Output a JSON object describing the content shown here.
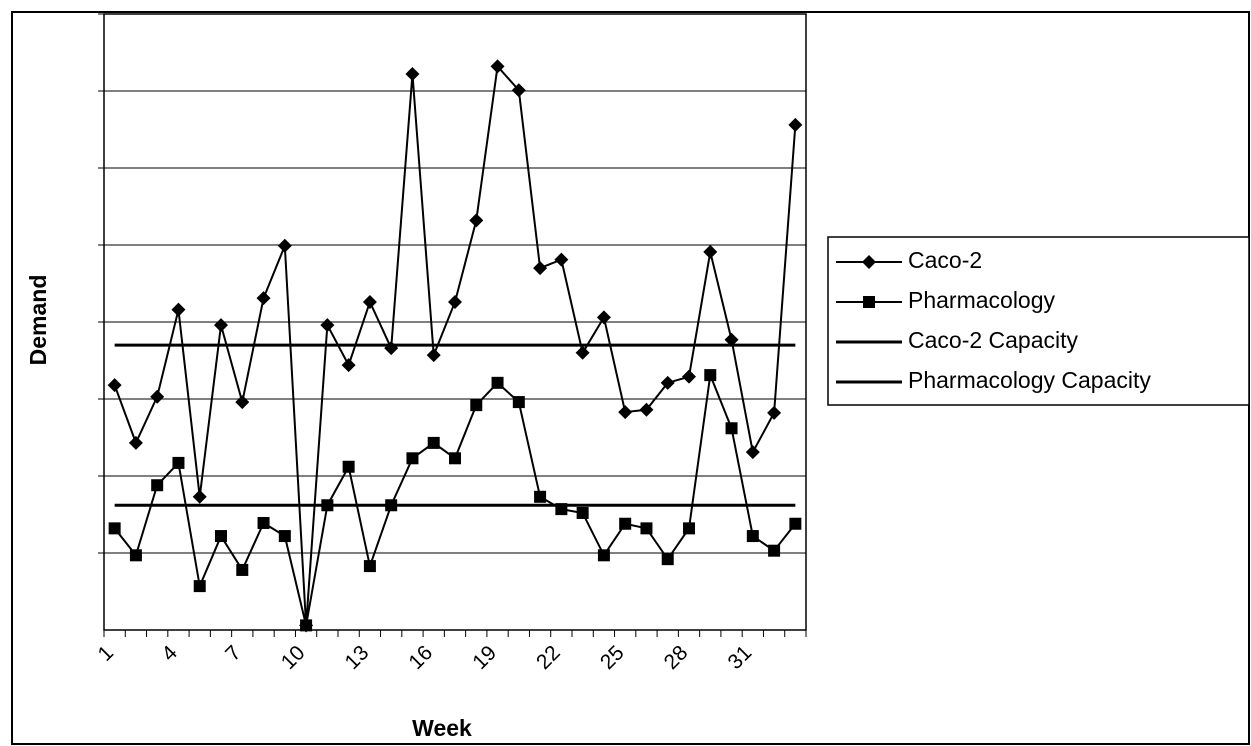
{
  "chart_data": {
    "type": "line",
    "x_label": "Week",
    "y_label": "Demand",
    "categories": [
      "1",
      null,
      null,
      "4",
      null,
      null,
      "7",
      null,
      null,
      "10",
      null,
      null,
      "13",
      null,
      null,
      "16",
      null,
      null,
      "19",
      null,
      null,
      "22",
      null,
      null,
      "25",
      null,
      null,
      "28",
      null,
      null,
      "31",
      null,
      null
    ],
    "ylim": [
      0,
      8
    ],
    "ygrid": [
      1,
      2,
      3,
      4,
      5,
      6,
      7,
      8
    ],
    "grid": true,
    "legend": "right",
    "series": [
      {
        "name": "Caco-2",
        "color": "#000000",
        "marker": "diamond",
        "values": [
          3.18,
          2.43,
          3.03,
          4.16,
          1.73,
          3.96,
          2.96,
          4.31,
          4.99,
          0.06,
          3.96,
          3.44,
          4.26,
          3.66,
          7.22,
          3.57,
          4.26,
          5.32,
          7.32,
          7.01,
          4.7,
          4.81,
          3.6,
          4.06,
          2.83,
          2.86,
          3.21,
          3.29,
          4.91,
          3.77,
          2.31,
          2.82,
          6.56
        ]
      },
      {
        "name": "Pharmacology",
        "color": "#000000",
        "marker": "square",
        "values": [
          1.32,
          0.97,
          1.88,
          2.17,
          0.57,
          1.22,
          0.78,
          1.39,
          1.22,
          0.06,
          1.62,
          2.12,
          0.83,
          1.62,
          2.23,
          2.43,
          2.23,
          2.92,
          3.21,
          2.96,
          1.73,
          1.57,
          1.52,
          0.97,
          1.38,
          1.32,
          0.92,
          1.32,
          3.31,
          2.62,
          1.22,
          1.03,
          1.38
        ]
      },
      {
        "name": "Caco-2 Capacity",
        "color": "#000000",
        "marker": "none",
        "values": [
          3.7,
          3.7,
          3.7,
          3.7,
          3.7,
          3.7,
          3.7,
          3.7,
          3.7,
          3.7,
          3.7,
          3.7,
          3.7,
          3.7,
          3.7,
          3.7,
          3.7,
          3.7,
          3.7,
          3.7,
          3.7,
          3.7,
          3.7,
          3.7,
          3.7,
          3.7,
          3.7,
          3.7,
          3.7,
          3.7,
          3.7,
          3.7,
          3.7
        ]
      },
      {
        "name": "Pharmacology Capacity",
        "color": "#000000",
        "marker": "none",
        "values": [
          1.62,
          1.62,
          1.62,
          1.62,
          1.62,
          1.62,
          1.62,
          1.62,
          1.62,
          1.62,
          1.62,
          1.62,
          1.62,
          1.62,
          1.62,
          1.62,
          1.62,
          1.62,
          1.62,
          1.62,
          1.62,
          1.62,
          1.62,
          1.62,
          1.62,
          1.62,
          1.62,
          1.62,
          1.62,
          1.62,
          1.62,
          1.62,
          1.62
        ]
      }
    ]
  }
}
